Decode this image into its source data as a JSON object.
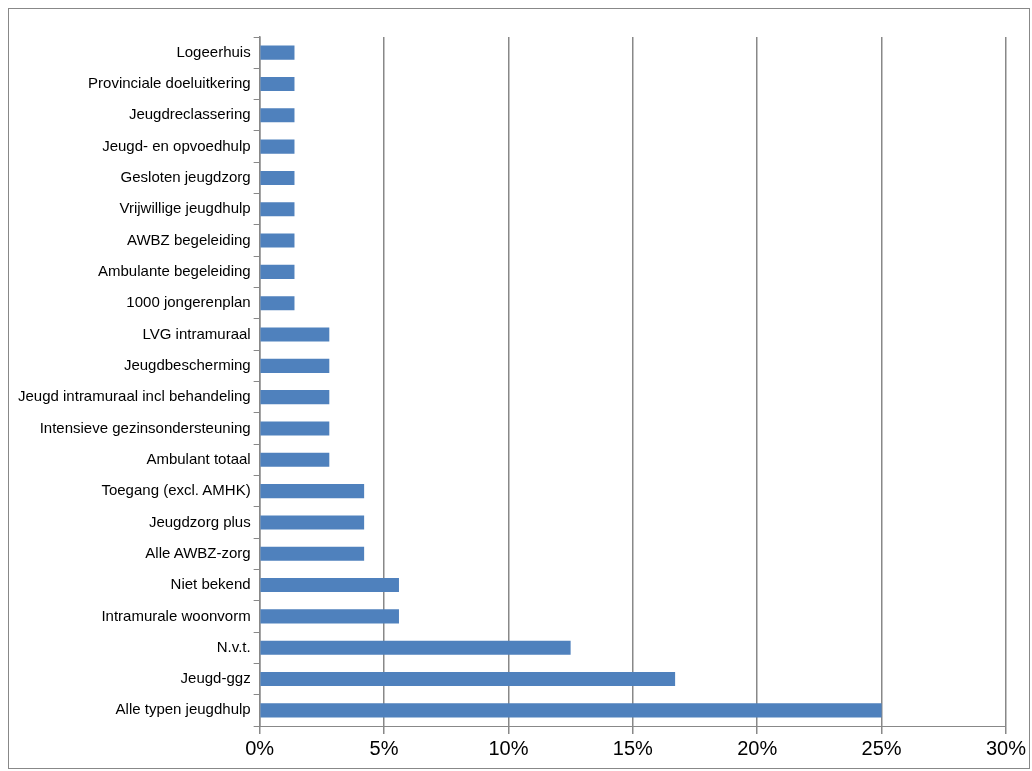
{
  "chart_data": {
    "type": "bar",
    "orientation": "horizontal",
    "categories": [
      "Logeerhuis",
      "Provinciale doeluitkering",
      "Jeugdreclassering",
      "Jeugd- en opvoedhulp",
      "Gesloten jeugdzorg",
      "Vrijwillige jeugdhulp",
      "AWBZ begeleiding",
      "Ambulante begeleiding",
      "1000 jongerenplan",
      "LVG intramuraal",
      "Jeugdbescherming",
      "Jeugd intramuraal incl behandeling",
      "Intensieve gezinsondersteuning",
      "Ambulant totaal",
      "Toegang (excl. AMHK)",
      "Jeugdzorg plus",
      "Alle AWBZ-zorg",
      "Niet bekend",
      "Intramurale woonvorm",
      "N.v.t.",
      "Jeugd-ggz",
      "Alle typen jeugdhulp"
    ],
    "values": [
      1.4,
      1.4,
      1.4,
      1.4,
      1.4,
      1.4,
      1.4,
      1.4,
      1.4,
      2.8,
      2.8,
      2.8,
      2.8,
      2.8,
      4.2,
      4.2,
      4.2,
      5.6,
      5.6,
      12.5,
      16.7,
      25
    ],
    "color": "#4f81bd",
    "xlim": [
      0,
      30
    ],
    "xticks": [
      {
        "value": 0,
        "label": "0%"
      },
      {
        "value": 5,
        "label": "5%"
      },
      {
        "value": 10,
        "label": "10%"
      },
      {
        "value": 15,
        "label": "15%"
      },
      {
        "value": 20,
        "label": "20%"
      },
      {
        "value": 25,
        "label": "25%"
      },
      {
        "value": 30,
        "label": "30%"
      }
    ],
    "grid": "x"
  }
}
